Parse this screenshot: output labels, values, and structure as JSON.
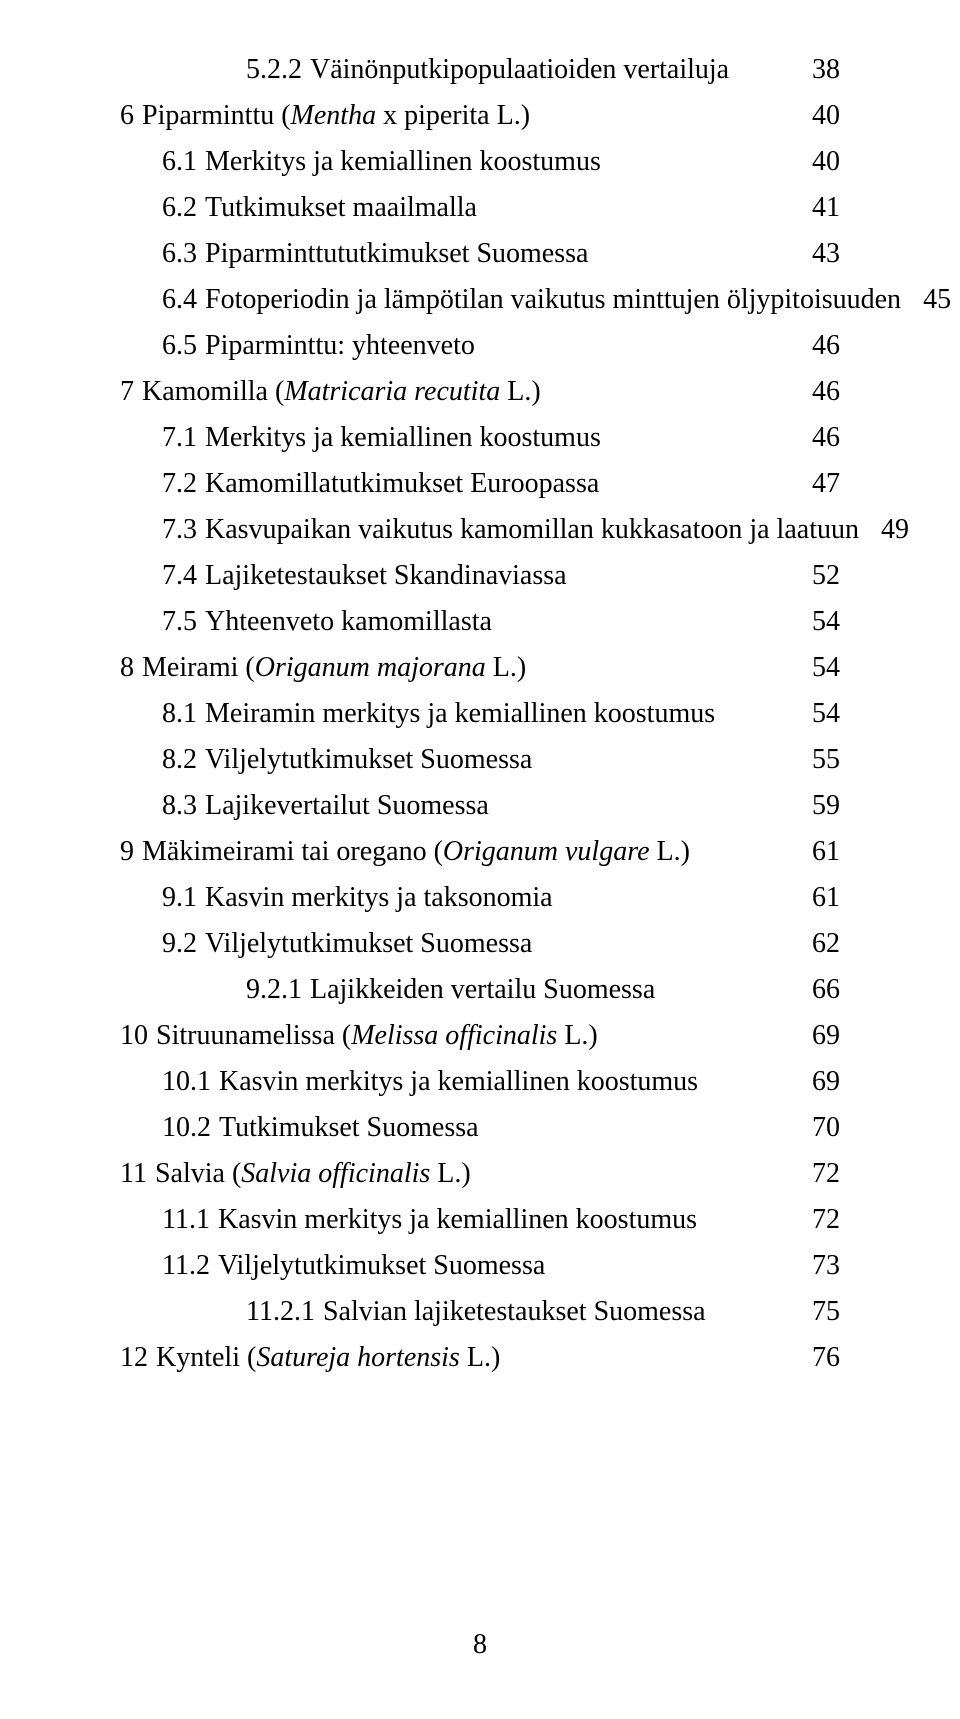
{
  "page_number": "8",
  "colors": {
    "text": "#000000",
    "background": "#ffffff"
  },
  "typography": {
    "family": "Times New Roman",
    "size_pt": 21
  },
  "toc": [
    {
      "indent": 3,
      "number": "5.2.2",
      "title_plain": "Väinönputkipopulaatioiden vertailuja",
      "title_italic": "",
      "page": "38"
    },
    {
      "indent": 0,
      "number": "6",
      "title_plain": "Piparminttu (",
      "title_italic": "Mentha",
      "title_plain_after": " x piperita L.)",
      "page": "40"
    },
    {
      "indent": 1,
      "number": "6.1",
      "title_plain": "Merkitys ja kemiallinen koostumus",
      "title_italic": "",
      "page": "40"
    },
    {
      "indent": 1,
      "number": "6.2",
      "title_plain": "Tutkimukset maailmalla",
      "title_italic": "",
      "page": "41"
    },
    {
      "indent": 1,
      "number": "6.3",
      "title_plain": "Piparminttututkimukset Suomessa",
      "title_italic": "",
      "page": "43"
    },
    {
      "indent": 1,
      "number": "6.4",
      "title_plain": "Fotoperiodin ja lämpötilan vaikutus minttujen öljypitoisuuden",
      "title_italic": "",
      "page": "45"
    },
    {
      "indent": 1,
      "number": "6.5",
      "title_plain": "Piparminttu: yhteenveto",
      "title_italic": "",
      "page": "46"
    },
    {
      "indent": 0,
      "number": "7",
      "title_plain": "Kamomilla (",
      "title_italic": "Matricaria recutita",
      "title_plain_after": " L.)",
      "page": "46"
    },
    {
      "indent": 1,
      "number": "7.1",
      "title_plain": "Merkitys ja kemiallinen koostumus",
      "title_italic": "",
      "page": "46"
    },
    {
      "indent": 1,
      "number": "7.2",
      "title_plain": "Kamomillatutkimukset Euroopassa",
      "title_italic": "",
      "page": "47"
    },
    {
      "indent": 1,
      "number": "7.3",
      "title_plain": "Kasvupaikan vaikutus kamomillan kukkasatoon ja laatuun",
      "title_italic": "",
      "page": "49"
    },
    {
      "indent": 1,
      "number": "7.4",
      "title_plain": "Lajiketestaukset Skandinaviassa",
      "title_italic": "",
      "page": "52"
    },
    {
      "indent": 1,
      "number": "7.5",
      "title_plain": "Yhteenveto kamomillasta",
      "title_italic": "",
      "page": "54"
    },
    {
      "indent": 0,
      "number": "8",
      "title_plain": "Meirami (",
      "title_italic": "Origanum majorana",
      "title_plain_after": " L.)",
      "page": "54"
    },
    {
      "indent": 1,
      "number": "8.1",
      "title_plain": "Meiramin merkitys ja kemiallinen koostumus",
      "title_italic": "",
      "page": "54"
    },
    {
      "indent": 1,
      "number": "8.2",
      "title_plain": "Viljelytutkimukset Suomessa",
      "title_italic": "",
      "page": "55"
    },
    {
      "indent": 1,
      "number": "8.3",
      "title_plain": "Lajikevertailut Suomessa",
      "title_italic": "",
      "page": "59"
    },
    {
      "indent": 0,
      "number": "9",
      "title_plain": "Mäkimeirami tai oregano (",
      "title_italic": "Origanum vulgare",
      "title_plain_after": " L.)",
      "page": "61"
    },
    {
      "indent": 1,
      "number": "9.1",
      "title_plain": "Kasvin merkitys ja taksonomia",
      "title_italic": "",
      "page": "61"
    },
    {
      "indent": 1,
      "number": "9.2",
      "title_plain": "Viljelytutkimukset Suomessa",
      "title_italic": "",
      "page": "62"
    },
    {
      "indent": 3,
      "number": "9.2.1",
      "title_plain": "Lajikkeiden vertailu Suomessa",
      "title_italic": "",
      "page": "66"
    },
    {
      "indent": 0,
      "number": "10",
      "title_plain": "Sitruunamelissa (",
      "title_italic": "Melissa officinalis",
      "title_plain_after": " L.)",
      "page": "69"
    },
    {
      "indent": 1,
      "number": "10.1",
      "title_plain": "Kasvin merkitys ja kemiallinen koostumus",
      "title_italic": "",
      "page": "69"
    },
    {
      "indent": 1,
      "number": "10.2",
      "title_plain": "Tutkimukset Suomessa",
      "title_italic": "",
      "page": "70"
    },
    {
      "indent": 0,
      "number": "11",
      "title_plain": "Salvia (",
      "title_italic": "Salvia officinalis",
      "title_plain_after": " L.)",
      "page": "72"
    },
    {
      "indent": 1,
      "number": "11.1",
      "title_plain": "Kasvin merkitys ja kemiallinen koostumus",
      "title_italic": "",
      "page": "72"
    },
    {
      "indent": 1,
      "number": "11.2",
      "title_plain": "Viljelytutkimukset Suomessa",
      "title_italic": "",
      "page": "73"
    },
    {
      "indent": 3,
      "number": "11.2.1",
      "title_plain": "Salvian lajiketestaukset Suomessa",
      "title_italic": "",
      "page": "75"
    },
    {
      "indent": 0,
      "number": "12",
      "title_plain": "Kynteli (",
      "title_italic": "Satureja hortensis",
      "title_plain_after": " L.)",
      "page": "76"
    }
  ]
}
